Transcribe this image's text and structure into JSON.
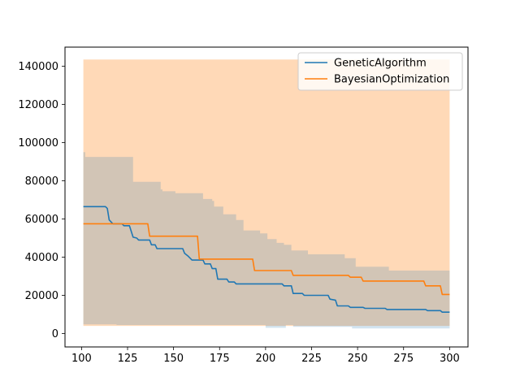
{
  "chart_data": {
    "type": "line",
    "title": "",
    "xlabel": "",
    "ylabel": "",
    "xlim": [
      91,
      310
    ],
    "ylim": [
      -7000,
      150000
    ],
    "grid": false,
    "legend_position": "top-right",
    "x_ticks": [
      100,
      125,
      150,
      175,
      200,
      225,
      250,
      275,
      300
    ],
    "y_ticks": [
      0,
      20000,
      40000,
      60000,
      80000,
      100000,
      120000,
      140000
    ],
    "series": [
      {
        "name": "GeneticAlgorithm",
        "color": "#1f77b4",
        "band_color": "#1f77b4",
        "line": [
          [
            101,
            66500
          ],
          [
            113,
            66500
          ],
          [
            114,
            65500
          ],
          [
            115,
            59500
          ],
          [
            117,
            57500
          ],
          [
            122,
            57500
          ],
          [
            123,
            56500
          ],
          [
            126,
            56500
          ],
          [
            128,
            50500
          ],
          [
            130,
            50000
          ],
          [
            131,
            49000
          ],
          [
            137,
            49000
          ],
          [
            138,
            46500
          ],
          [
            140,
            46500
          ],
          [
            141,
            44500
          ],
          [
            155,
            44500
          ],
          [
            156,
            42000
          ],
          [
            158,
            40500
          ],
          [
            160,
            38500
          ],
          [
            166,
            38500
          ],
          [
            167,
            36500
          ],
          [
            170,
            36500
          ],
          [
            171,
            34000
          ],
          [
            173,
            34000
          ],
          [
            174,
            28500
          ],
          [
            179,
            28500
          ],
          [
            180,
            27000
          ],
          [
            183,
            27000
          ],
          [
            184,
            26000
          ],
          [
            209,
            26000
          ],
          [
            210,
            25000
          ],
          [
            214,
            25000
          ],
          [
            215,
            21000
          ],
          [
            220,
            21000
          ],
          [
            221,
            20000
          ],
          [
            234,
            20000
          ],
          [
            235,
            18000
          ],
          [
            238,
            17500
          ],
          [
            239,
            14500
          ],
          [
            245,
            14500
          ],
          [
            246,
            13700
          ],
          [
            253,
            13700
          ],
          [
            254,
            13200
          ],
          [
            265,
            13200
          ],
          [
            266,
            12600
          ],
          [
            287,
            12600
          ],
          [
            288,
            12000
          ],
          [
            295,
            12000
          ],
          [
            296,
            11200
          ],
          [
            300,
            11200
          ]
        ],
        "band_upper": [
          [
            101,
            95000
          ],
          [
            102,
            92500
          ],
          [
            126,
            92500
          ],
          [
            128,
            79500
          ],
          [
            141,
            79500
          ],
          [
            143,
            75500
          ],
          [
            144,
            74500
          ],
          [
            150,
            74500
          ],
          [
            151,
            73500
          ],
          [
            165,
            73500
          ],
          [
            166,
            70500
          ],
          [
            170,
            70500
          ],
          [
            171,
            69500
          ],
          [
            172,
            66500
          ],
          [
            176,
            66500
          ],
          [
            177,
            62500
          ],
          [
            183,
            62500
          ],
          [
            184,
            59500
          ],
          [
            187,
            59500
          ],
          [
            188,
            54000
          ],
          [
            196,
            54000
          ],
          [
            197,
            52500
          ],
          [
            200,
            52500
          ],
          [
            201,
            49500
          ],
          [
            205,
            49500
          ],
          [
            206,
            47500
          ],
          [
            209,
            47500
          ],
          [
            210,
            46500
          ],
          [
            213,
            46500
          ],
          [
            214,
            43500
          ],
          [
            222,
            43500
          ],
          [
            223,
            41500
          ],
          [
            242,
            41500
          ],
          [
            243,
            39500
          ],
          [
            248,
            39500
          ],
          [
            249,
            35000
          ],
          [
            266,
            35000
          ],
          [
            267,
            33000
          ],
          [
            300,
            33000
          ]
        ],
        "band_lower": [
          [
            101,
            4800
          ],
          [
            118,
            4800
          ],
          [
            119,
            4500
          ],
          [
            199,
            4500
          ],
          [
            200,
            3000
          ],
          [
            210,
            3000
          ],
          [
            211,
            4500
          ],
          [
            214,
            4500
          ],
          [
            215,
            3500
          ],
          [
            246,
            3500
          ],
          [
            247,
            2700
          ],
          [
            300,
            2700
          ]
        ]
      },
      {
        "name": "BayesianOptimization",
        "color": "#ff7f0e",
        "band_color": "#ffd9b7",
        "line": [
          [
            101,
            57500
          ],
          [
            136,
            57500
          ],
          [
            137,
            51000
          ],
          [
            163,
            51000
          ],
          [
            164,
            39000
          ],
          [
            193,
            39000
          ],
          [
            194,
            33000
          ],
          [
            214,
            33000
          ],
          [
            215,
            30500
          ],
          [
            245,
            30500
          ],
          [
            246,
            29500
          ],
          [
            252,
            29500
          ],
          [
            253,
            27500
          ],
          [
            286,
            27500
          ],
          [
            287,
            25000
          ],
          [
            295,
            25000
          ],
          [
            296,
            20500
          ],
          [
            300,
            20500
          ]
        ],
        "band_upper": [
          [
            101,
            143500
          ],
          [
            300,
            143500
          ]
        ],
        "band_lower": [
          [
            101,
            4000
          ],
          [
            300,
            4000
          ]
        ]
      }
    ]
  }
}
